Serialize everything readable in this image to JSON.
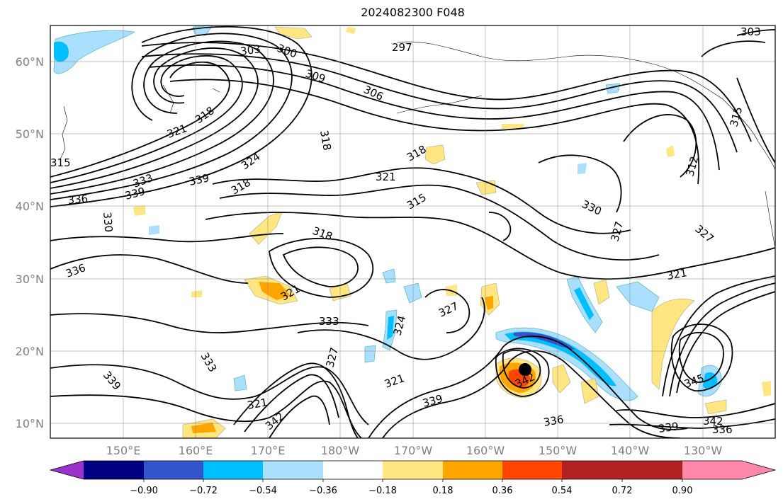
{
  "title": "2024082300 F048",
  "map": {
    "lat_ticks": [
      "60°N",
      "50°N",
      "40°N",
      "30°N",
      "20°N",
      "10°N"
    ],
    "lon_ticks": [
      "150°E",
      "160°E",
      "170°E",
      "180°W",
      "170°W",
      "160°W",
      "150°W",
      "140°W",
      "130°W"
    ],
    "contour_labels": [
      "303",
      "300",
      "297",
      "309",
      "306",
      "303",
      "321",
      "318",
      "315",
      "318",
      "324",
      "339",
      "336",
      "339",
      "333",
      "318",
      "321",
      "315",
      "330",
      "318",
      "327",
      "312",
      "315",
      "336",
      "330",
      "327",
      "318",
      "321",
      "333",
      "333",
      "327",
      "321",
      "339",
      "342",
      "327",
      "321",
      "339",
      "336",
      "339",
      "342",
      "336",
      "345",
      "342",
      "321",
      "324"
    ]
  },
  "colorbar": {
    "colors": [
      "#9933cc",
      "#000080",
      "#3355cc",
      "#00bfff",
      "#aadfff",
      "#ffffff",
      "#ffe680",
      "#ffa500",
      "#ff4500",
      "#b22222",
      "#ff88aa"
    ],
    "labels": [
      "−0.90",
      "−0.72",
      "−0.54",
      "−0.36",
      "−0.18",
      "0.18",
      "0.36",
      "0.54",
      "0.72",
      "0.90"
    ]
  }
}
